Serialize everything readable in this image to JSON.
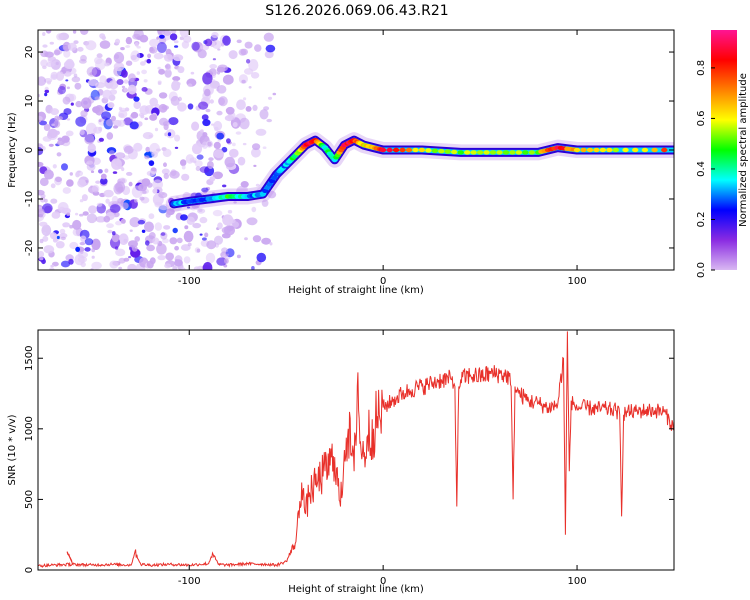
{
  "figure_title": "S126.2026.069.06.43.R21",
  "chart_data": [
    {
      "type": "heatmap",
      "title": "S126.2026.069.06.43.R21",
      "xlabel": "Height of straight line (km)",
      "ylabel": "Frequency (Hz)",
      "xlim": [
        -178,
        150
      ],
      "ylim": [
        -24.5,
        24.5
      ],
      "xticks": [
        -100,
        0,
        100
      ],
      "yticks": [
        -20,
        -10,
        0,
        10,
        20
      ],
      "colorbar": {
        "label": "Normalized spectral amplitude",
        "range": [
          0,
          0.95
        ],
        "ticks": [
          0.0,
          0.2,
          0.4,
          0.6,
          0.8
        ],
        "colors": [
          "#d9b8f2",
          "#8a2be2",
          "#0000ff",
          "#00ffff",
          "#00ff00",
          "#ffff00",
          "#ff8000",
          "#ff0000",
          "#ff1493"
        ]
      },
      "ridge": {
        "x": [
          -108,
          -100,
          -90,
          -80,
          -70,
          -62,
          -55,
          -50,
          -45,
          -40,
          -35,
          -30,
          -25,
          -20,
          -15,
          -10,
          -5,
          0,
          20,
          40,
          60,
          80,
          90,
          100,
          120,
          150
        ],
        "y": [
          -11,
          -10.5,
          -10,
          -9.5,
          -9.5,
          -9,
          -5,
          -3,
          -1,
          1,
          2,
          0.5,
          -2,
          1,
          2,
          1,
          0.5,
          0,
          0,
          -0.5,
          -0.5,
          -0.5,
          0.5,
          0,
          0,
          0
        ],
        "amplitude": [
          0.3,
          0.3,
          0.3,
          0.45,
          0.3,
          0.3,
          0.3,
          0.35,
          0.45,
          0.9,
          0.85,
          0.4,
          0.4,
          0.9,
          0.8,
          0.6,
          0.7,
          0.85,
          0.6,
          0.55,
          0.6,
          0.55,
          0.9,
          0.6,
          0.6,
          0.75
        ]
      },
      "noise_region_x": [
        -178,
        -55
      ]
    },
    {
      "type": "line",
      "xlabel": "Height of straight line (km)",
      "ylabel": "SNR (10 * v/v)",
      "xlim": [
        -178,
        150
      ],
      "ylim": [
        0,
        1700
      ],
      "xticks": [
        -100,
        0,
        100
      ],
      "yticks": [
        0,
        500,
        1000,
        1500
      ],
      "series": [
        {
          "name": "SNR",
          "color": "#e8302a",
          "x": [
            -178,
            -170,
            -160,
            -163,
            -160,
            -150,
            -140,
            -130,
            -128,
            -125,
            -120,
            -110,
            -100,
            -95,
            -90,
            -88,
            -85,
            -80,
            -70,
            -60,
            -55,
            -50,
            -45,
            -42,
            -40,
            -38,
            -35,
            -30,
            -25,
            -22,
            -20,
            -18,
            -15,
            -13,
            -12,
            -10,
            -8,
            -5,
            -2,
            0,
            5,
            10,
            15,
            20,
            25,
            30,
            35,
            37,
            38,
            39,
            40,
            45,
            50,
            55,
            60,
            65,
            66,
            67,
            68,
            70,
            75,
            80,
            85,
            90,
            93,
            94,
            95,
            96,
            97,
            98,
            100,
            105,
            110,
            115,
            120,
            122,
            123,
            124,
            125,
            130,
            135,
            140,
            145,
            150
          ],
          "y": [
            30,
            35,
            40,
            130,
            40,
            35,
            40,
            35,
            130,
            40,
            35,
            40,
            35,
            40,
            45,
            120,
            40,
            35,
            45,
            40,
            35,
            60,
            200,
            620,
            400,
            550,
            600,
            700,
            800,
            450,
            850,
            1000,
            700,
            1400,
            900,
            800,
            950,
            1000,
            1100,
            1150,
            1200,
            1250,
            1280,
            1300,
            1320,
            1350,
            1350,
            1300,
            450,
            1300,
            1350,
            1380,
            1370,
            1390,
            1390,
            1370,
            1300,
            500,
            1300,
            1250,
            1200,
            1180,
            1150,
            1170,
            1500,
            250,
            1690,
            700,
            1200,
            1170,
            1150,
            1150,
            1140,
            1140,
            1130,
            1100,
            380,
            1100,
            1120,
            1120,
            1130,
            1130,
            1120,
            1000
          ]
        }
      ]
    }
  ]
}
